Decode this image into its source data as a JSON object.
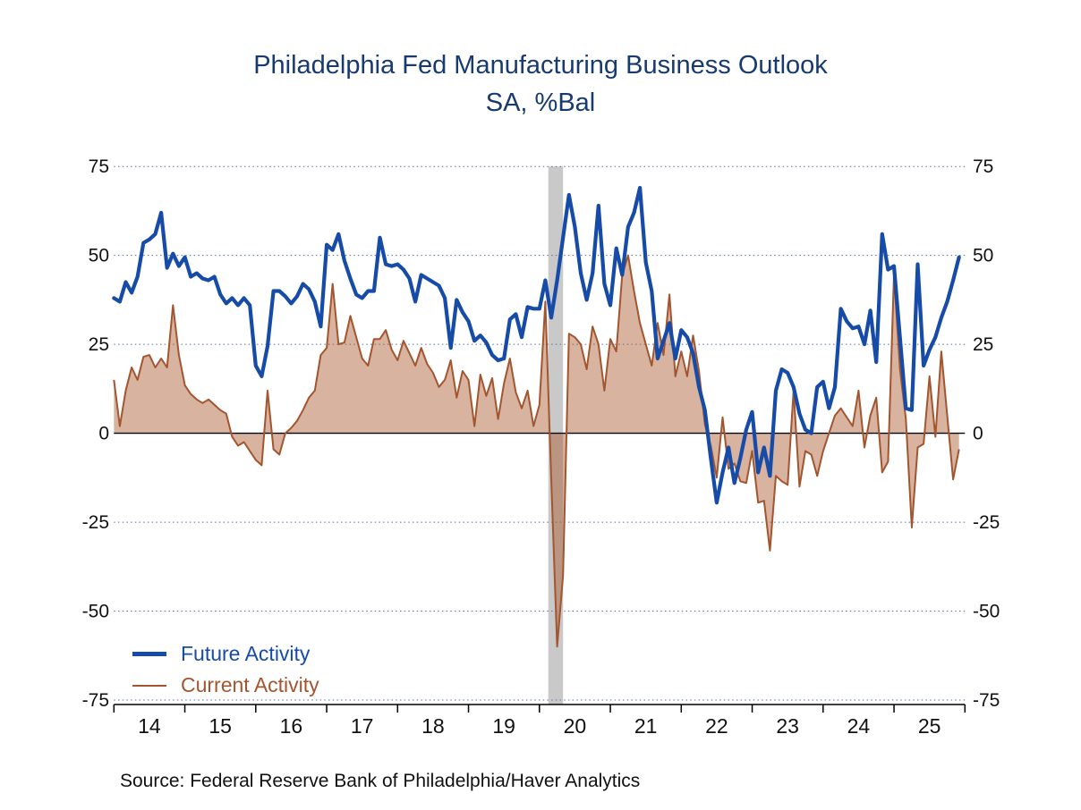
{
  "title": {
    "line1": "Philadelphia Fed Manufacturing Business Outlook",
    "line2": "SA, %Bal"
  },
  "source": "Source:  Federal Reserve Bank of Philadelphia/Haver Analytics",
  "legend": {
    "items": [
      {
        "label": "Future Activity",
        "color": "#164ba8",
        "swatch_thickness": 5
      },
      {
        "label": "Current Activity",
        "color": "#a2552f",
        "swatch_thickness": 2
      }
    ]
  },
  "colors": {
    "future_line": "#164ba8",
    "current_line": "#a2552f",
    "current_fill": "rgba(168,86,42,0.45)",
    "gridline": "#5a6f9e",
    "axis": "#000000",
    "recession_band": "#c9c9c9",
    "title": "#173a70",
    "tick_label": "#111111"
  },
  "chart_data": {
    "type": "line",
    "title": "Philadelphia Fed Manufacturing Business Outlook",
    "subtitle": "SA, %Bal",
    "frequency": "monthly",
    "x_start": "2014-01",
    "x_end": "2025-12",
    "x_tick_labels": [
      "14",
      "15",
      "16",
      "17",
      "18",
      "19",
      "20",
      "21",
      "22",
      "23",
      "24",
      "25"
    ],
    "ylim": [
      -75,
      75
    ],
    "yticks": [
      75,
      50,
      25,
      0,
      -25,
      -50,
      -75
    ],
    "ytick_labels": [
      "75",
      "50",
      "25",
      "0",
      "-25",
      "-50",
      "-75"
    ],
    "grid": "dotted horizontal lines at every 25, solid black zero line, labels on both sides",
    "legend_position": "bottom-left inside plot",
    "recession_band": {
      "from": "2020-02",
      "to": "2020-04"
    },
    "series": [
      {
        "name": "Future Activity",
        "style": "line",
        "values": [
          38,
          37,
          42.5,
          39.5,
          44,
          53.5,
          54.5,
          56,
          62,
          46.5,
          50.5,
          47,
          49.5,
          44,
          45,
          43.5,
          43,
          44,
          39,
          36.5,
          38,
          36,
          38,
          36,
          19,
          16,
          24.5,
          40,
          40,
          38.5,
          36.5,
          38.5,
          42,
          40.5,
          37,
          30,
          53,
          51.5,
          56,
          48.5,
          43.5,
          39,
          38,
          40,
          40,
          55,
          47.5,
          47,
          47.5,
          46,
          43.5,
          37,
          44.5,
          43.5,
          42.5,
          41.5,
          38,
          24,
          37.5,
          34,
          31.5,
          26,
          27.5,
          25.5,
          22,
          20.5,
          21,
          32,
          33.5,
          27,
          35.5,
          35,
          35,
          43,
          32.5,
          43,
          55,
          67,
          58,
          45,
          37.5,
          45,
          64,
          42,
          36,
          52,
          44.5,
          58,
          62,
          69,
          48,
          40,
          21,
          26,
          31,
          21,
          29,
          27,
          22.5,
          13,
          6.5,
          -7,
          -19.5,
          -11,
          -4,
          -14,
          -7,
          1,
          6,
          -11,
          -4,
          -12,
          12,
          18,
          17,
          13,
          5.5,
          1,
          0,
          13,
          14.5,
          7,
          13,
          35,
          31.5,
          29.5,
          30,
          25,
          34.5,
          20,
          56,
          46,
          47,
          27,
          7,
          6.5,
          47.5,
          19,
          23.5,
          27,
          32.5,
          37,
          43,
          49.5
        ]
      },
      {
        "name": "Current Activity",
        "style": "area",
        "values": [
          15,
          2,
          12,
          18.5,
          15,
          21.5,
          22,
          18.5,
          21,
          18.5,
          36,
          22,
          13.5,
          11,
          9.5,
          8.5,
          9.5,
          8,
          6.5,
          5.5,
          -1,
          -3.5,
          -2.5,
          -5,
          -7.5,
          -9,
          12,
          -4.5,
          -6,
          0,
          1.5,
          3.5,
          6.5,
          10,
          12,
          22,
          24,
          42,
          25,
          25.5,
          33,
          27,
          21,
          19,
          26.5,
          26.5,
          29,
          23.5,
          20.5,
          26,
          22.5,
          19,
          24,
          19.5,
          17,
          13,
          15,
          20.5,
          10,
          17.5,
          15,
          2,
          16.5,
          10.5,
          15.5,
          4,
          14,
          21,
          11.5,
          7,
          12,
          2,
          8,
          37,
          -13,
          -60,
          -40,
          28,
          27,
          25,
          18,
          30,
          25,
          12,
          26.5,
          23,
          44.5,
          50,
          40,
          31,
          25,
          19,
          31,
          22,
          39,
          16,
          23,
          16,
          27.5,
          17.5,
          2.5,
          -3.5,
          -12.5,
          4.5,
          -10,
          -8.5,
          -13.5,
          -14,
          -5,
          -19.5,
          -19,
          -33,
          -12,
          -13.5,
          -14.5,
          12,
          -15,
          -5,
          -6,
          -12,
          -5,
          0,
          5,
          7,
          4.5,
          2,
          12,
          -4,
          5,
          10,
          -11,
          -8,
          44.5,
          18,
          4,
          -26.5,
          -4,
          -3,
          16,
          -1,
          23,
          5,
          -13,
          -4.5
        ]
      }
    ]
  }
}
